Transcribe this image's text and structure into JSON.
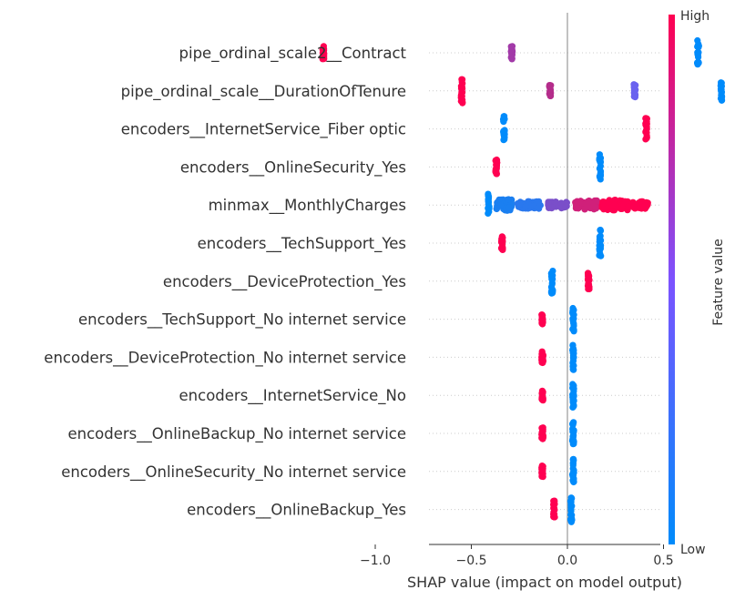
{
  "chart_data": {
    "type": "scatter",
    "subtype": "shap-beeswarm",
    "xlabel": "SHAP value (impact on model output)",
    "x_ticks": [
      "−1.0",
      "−0.5",
      "0.0",
      "0.5"
    ],
    "x_tick_values": [
      -1.0,
      -0.5,
      0.0,
      0.5
    ],
    "xlim": [
      -1.45,
      0.85
    ],
    "colorbar": {
      "title": "Feature value",
      "high_label": "High",
      "low_label": "Low",
      "low_color": "#008bfb",
      "mid_color": "#7c52ff",
      "high_color": "#ff0051"
    },
    "features": [
      {
        "name": "pipe_ordinal_scale2__Contract",
        "clusters": [
          {
            "x": -1.27,
            "spread": 0.004,
            "height": 0.45,
            "color": "#ff0051"
          },
          {
            "x": -0.29,
            "spread": 0.004,
            "height": 0.45,
            "color": "#a23aa8"
          },
          {
            "x": 0.68,
            "spread": 0.004,
            "height": 0.75,
            "color": "#008bfb"
          }
        ]
      },
      {
        "name": "pipe_ordinal_scale__DurationOfTenure",
        "clusters": [
          {
            "x": -0.55,
            "spread": 0.004,
            "height": 0.75,
            "color": "#ff0051"
          },
          {
            "x": -0.09,
            "spread": 0.004,
            "height": 0.35,
            "color": "#b42d8b"
          },
          {
            "x": 0.35,
            "spread": 0.004,
            "height": 0.4,
            "color": "#6a62ef"
          },
          {
            "x": 0.8,
            "spread": 0.004,
            "height": 0.6,
            "color": "#008bfb"
          }
        ]
      },
      {
        "name": "encoders__InternetService_Fiber optic",
        "clusters": [
          {
            "x": -0.33,
            "spread": 0.004,
            "height": 0.8,
            "color": "#008bfb"
          },
          {
            "x": 0.41,
            "spread": 0.004,
            "height": 0.7,
            "color": "#ff0051"
          }
        ]
      },
      {
        "name": "encoders__OnlineSecurity_Yes",
        "clusters": [
          {
            "x": -0.37,
            "spread": 0.004,
            "height": 0.45,
            "color": "#ff0051"
          },
          {
            "x": 0.17,
            "spread": 0.004,
            "height": 0.8,
            "color": "#008bfb"
          }
        ]
      },
      {
        "name": "minmax__MonthlyCharges",
        "clusters": [
          {
            "x": -0.41,
            "spread": 0.004,
            "height": 0.75,
            "color": "#008bfb"
          },
          {
            "x": -0.33,
            "spread": 0.04,
            "height": 0.35,
            "color": "#1a7ff0"
          },
          {
            "x": -0.2,
            "spread": 0.06,
            "height": 0.22,
            "color": "#2a78ee"
          },
          {
            "x": -0.05,
            "spread": 0.05,
            "height": 0.2,
            "color": "#7a4fc9"
          },
          {
            "x": 0.1,
            "spread": 0.06,
            "height": 0.28,
            "color": "#d0207a"
          },
          {
            "x": 0.25,
            "spread": 0.07,
            "height": 0.32,
            "color": "#ff0051"
          },
          {
            "x": 0.38,
            "spread": 0.04,
            "height": 0.22,
            "color": "#ff0051"
          }
        ]
      },
      {
        "name": "encoders__TechSupport_Yes",
        "clusters": [
          {
            "x": -0.34,
            "spread": 0.004,
            "height": 0.45,
            "color": "#ff0051"
          },
          {
            "x": 0.17,
            "spread": 0.004,
            "height": 0.8,
            "color": "#008bfb"
          }
        ]
      },
      {
        "name": "encoders__DeviceProtection_Yes",
        "clusters": [
          {
            "x": -0.08,
            "spread": 0.004,
            "height": 0.8,
            "color": "#008bfb"
          },
          {
            "x": 0.11,
            "spread": 0.004,
            "height": 0.5,
            "color": "#ff0051"
          }
        ]
      },
      {
        "name": "encoders__TechSupport_No internet service",
        "clusters": [
          {
            "x": -0.13,
            "spread": 0.004,
            "height": 0.35,
            "color": "#ff0051"
          },
          {
            "x": 0.03,
            "spread": 0.004,
            "height": 0.8,
            "color": "#008bfb"
          }
        ]
      },
      {
        "name": "encoders__DeviceProtection_No internet service",
        "clusters": [
          {
            "x": -0.13,
            "spread": 0.004,
            "height": 0.35,
            "color": "#ff0051"
          },
          {
            "x": 0.03,
            "spread": 0.004,
            "height": 0.8,
            "color": "#008bfb"
          }
        ]
      },
      {
        "name": "encoders__InternetService_No",
        "clusters": [
          {
            "x": -0.13,
            "spread": 0.004,
            "height": 0.35,
            "color": "#ff0051"
          },
          {
            "x": 0.03,
            "spread": 0.004,
            "height": 0.8,
            "color": "#008bfb"
          }
        ]
      },
      {
        "name": "encoders__OnlineBackup_No internet service",
        "clusters": [
          {
            "x": -0.13,
            "spread": 0.004,
            "height": 0.35,
            "color": "#ff0051"
          },
          {
            "x": 0.03,
            "spread": 0.004,
            "height": 0.8,
            "color": "#008bfb"
          }
        ]
      },
      {
        "name": "encoders__OnlineSecurity_No internet service",
        "clusters": [
          {
            "x": -0.13,
            "spread": 0.004,
            "height": 0.35,
            "color": "#ff0051"
          },
          {
            "x": 0.03,
            "spread": 0.004,
            "height": 0.8,
            "color": "#008bfb"
          }
        ]
      },
      {
        "name": "encoders__OnlineBackup_Yes",
        "clusters": [
          {
            "x": -0.07,
            "spread": 0.004,
            "height": 0.55,
            "color": "#ff0051"
          },
          {
            "x": 0.02,
            "spread": 0.004,
            "height": 0.8,
            "color": "#008bfb"
          }
        ]
      }
    ]
  }
}
